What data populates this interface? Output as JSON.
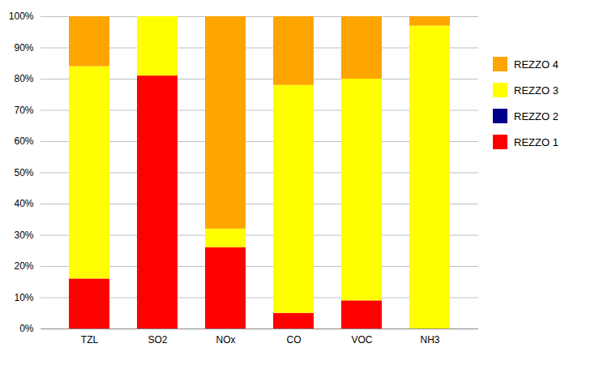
{
  "chart_data": {
    "type": "bar",
    "stacked": true,
    "categories": [
      "TZL",
      "SO2",
      "NOx",
      "CO",
      "VOC",
      "NH3"
    ],
    "series": [
      {
        "name": "REZZO 1",
        "color": "#FF0000",
        "values": [
          16,
          81,
          26,
          5,
          9,
          0
        ]
      },
      {
        "name": "REZZO 2",
        "color": "#00008B",
        "values": [
          0,
          0,
          0,
          0,
          0,
          0
        ]
      },
      {
        "name": "REZZO 3",
        "color": "#FFFF00",
        "values": [
          68,
          19,
          6,
          73,
          71,
          97
        ]
      },
      {
        "name": "REZZO 4",
        "color": "#FFA500",
        "values": [
          16,
          0,
          68,
          22,
          20,
          3
        ]
      }
    ],
    "ylim": [
      0,
      100
    ],
    "yticks": [
      {
        "value": 0,
        "label": "0%"
      },
      {
        "value": 10,
        "label": "10%"
      },
      {
        "value": 20,
        "label": "20%"
      },
      {
        "value": 30,
        "label": "30%"
      },
      {
        "value": 40,
        "label": "40%"
      },
      {
        "value": 50,
        "label": "50%"
      },
      {
        "value": 60,
        "label": "60%"
      },
      {
        "value": 70,
        "label": "70%"
      },
      {
        "value": 80,
        "label": "80%"
      },
      {
        "value": 90,
        "label": "90%"
      },
      {
        "value": 100,
        "label": "100%"
      }
    ],
    "grid": true,
    "legend": "right"
  }
}
